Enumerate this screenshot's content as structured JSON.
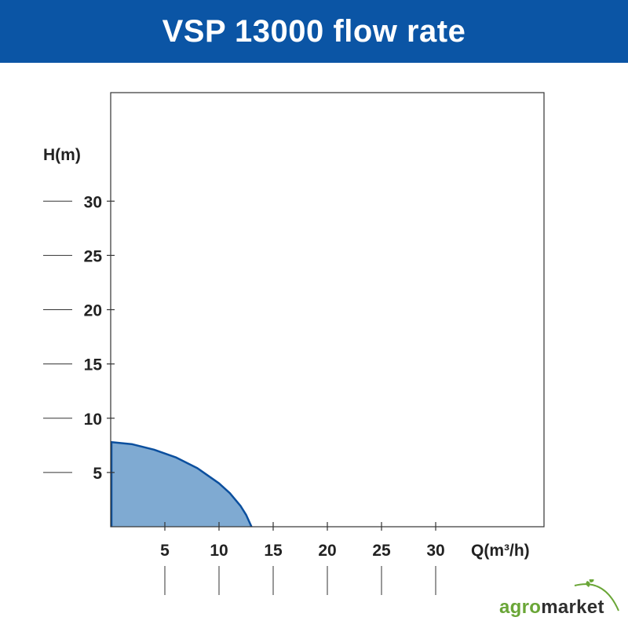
{
  "header": {
    "title": "VSP 13000 flow rate"
  },
  "colors": {
    "header_bg": "#0b55a5",
    "fill": "#7faad2",
    "stroke": "#0b4f9e",
    "axis": "#333333",
    "brand_agro": "#6aa637",
    "brand_market": "#2f2f2f"
  },
  "chart_data": {
    "type": "area",
    "ylabel": "H(m)",
    "xlabel": "Q(m³/h)",
    "x_ticks": [
      5,
      10,
      15,
      20,
      25,
      30
    ],
    "y_ticks": [
      5,
      10,
      15,
      20,
      25,
      30
    ],
    "xlim": [
      0,
      40
    ],
    "ylim": [
      0,
      40
    ],
    "grid": false,
    "series": [
      {
        "x": [
          0,
          2,
          4,
          6,
          8,
          10,
          11,
          12,
          12.5,
          13
        ],
        "y": [
          7.8,
          7.6,
          7.1,
          6.4,
          5.4,
          4.0,
          3.1,
          1.9,
          1.1,
          0
        ]
      }
    ]
  },
  "brand": {
    "agro": "agro",
    "market": "market"
  },
  "icons": {
    "brand_leaf": "leaf-icon"
  }
}
